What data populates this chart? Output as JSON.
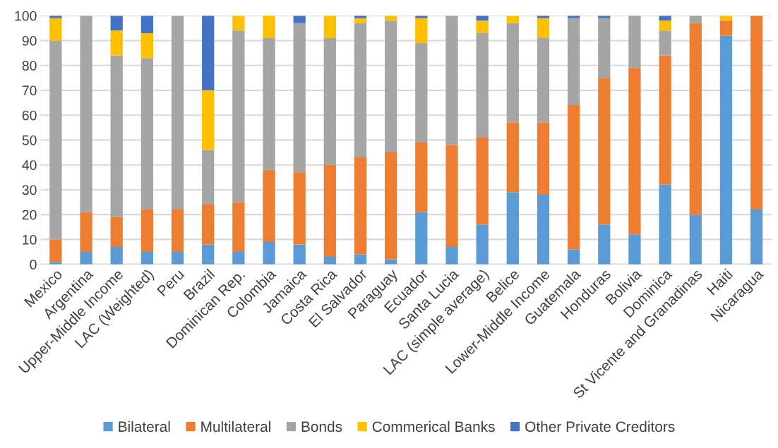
{
  "chart_data": {
    "type": "bar",
    "stacked": true,
    "categories": [
      "Mexico",
      "Argentina",
      "Upper-Middle Income",
      "LAC (Weighted)",
      "Peru",
      "Brazil",
      "Dominican Rep.",
      "Colombia",
      "Jamaica",
      "Costa Rica",
      "El Salvador",
      "Paraguay",
      "Ecuador",
      "Santa Lucia",
      "LAC (simple average)",
      "Belice",
      "Lower-Middle Income",
      "Guatemala",
      "Honduras",
      "Bolivia",
      "Dominica",
      "St Vicente and Granadinas",
      "Haiti",
      "Nicaragua"
    ],
    "series": [
      {
        "name": "Bilateral",
        "color": "#5b9bd5",
        "values": [
          1,
          5,
          7,
          5,
          5,
          8,
          5,
          9,
          8,
          3,
          4,
          2,
          21,
          7,
          16,
          29,
          28,
          6,
          16,
          12,
          32,
          20,
          92,
          22
        ]
      },
      {
        "name": "Multilateral",
        "color": "#ed7d31",
        "values": [
          9,
          16,
          12,
          17,
          17,
          16,
          20,
          29,
          29,
          37,
          39,
          43,
          28,
          41,
          35,
          28,
          29,
          58,
          59,
          67,
          52,
          77,
          6,
          78
        ]
      },
      {
        "name": "Bonds",
        "color": "#a5a5a5",
        "values": [
          80,
          79,
          65,
          61,
          78,
          22,
          69,
          53,
          60,
          51,
          54,
          53,
          40,
          52,
          42,
          40,
          34,
          35,
          24,
          21,
          10,
          3,
          0,
          0
        ]
      },
      {
        "name": "Commerical Banks",
        "color": "#ffc000",
        "values": [
          9,
          0,
          10,
          10,
          0,
          24,
          6,
          9,
          0,
          9,
          2,
          2,
          10,
          0,
          5,
          3,
          8,
          0,
          0,
          0,
          4,
          0,
          2,
          0
        ]
      },
      {
        "name": "Other Private Creditors",
        "color": "#4472c4",
        "values": [
          1,
          0,
          6,
          7,
          0,
          30,
          0,
          0,
          3,
          0,
          1,
          0,
          1,
          0,
          2,
          0,
          1,
          1,
          1,
          0,
          2,
          0,
          0,
          0
        ]
      }
    ],
    "ylim": [
      0,
      100
    ],
    "yticks": [
      0,
      10,
      20,
      30,
      40,
      50,
      60,
      70,
      80,
      90,
      100
    ],
    "grid": "y",
    "legend": "bottom"
  }
}
